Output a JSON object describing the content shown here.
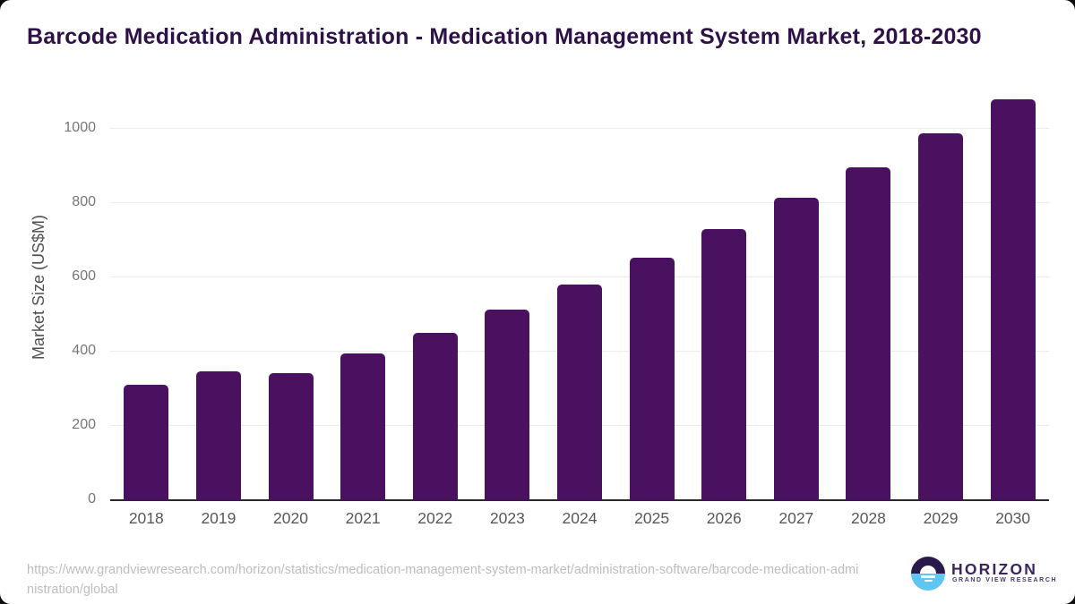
{
  "page_title": "Barcode Medication Administration - Medication Management System Market, 2018-2030",
  "chart_data": {
    "type": "bar",
    "title": "Barcode Medication Administration - Medication Management System Market, 2018-2030",
    "categories": [
      "2018",
      "2019",
      "2020",
      "2021",
      "2022",
      "2023",
      "2024",
      "2025",
      "2026",
      "2027",
      "2028",
      "2029",
      "2030"
    ],
    "values": [
      310,
      346,
      341,
      394,
      451,
      513,
      579,
      652,
      730,
      813,
      896,
      986,
      1079
    ],
    "xlabel": "",
    "ylabel": "Market Size (US$M)",
    "ylim": [
      0,
      1100
    ],
    "yticks": [
      0,
      200,
      400,
      600,
      800,
      1000
    ],
    "grid": true,
    "legend": "none",
    "bar_color": "#4a1160"
  },
  "footer": {
    "source_url": "https://www.grandviewresearch.com/horizon/statistics/medication-management-system-market/administration-software/barcode-medication-administration/global",
    "logo": {
      "brand": "HORIZON",
      "sub": "GRAND VIEW RESEARCH"
    }
  },
  "colors": {
    "bar": "#4a1160",
    "title_text": "#2e1147",
    "axis_line": "#29292b",
    "gridline": "#ececec",
    "tick_text": "#767676",
    "url_text": "#bdbdbd",
    "logo_dark": "#2a1a4b",
    "logo_blue": "#5ec6f0"
  }
}
